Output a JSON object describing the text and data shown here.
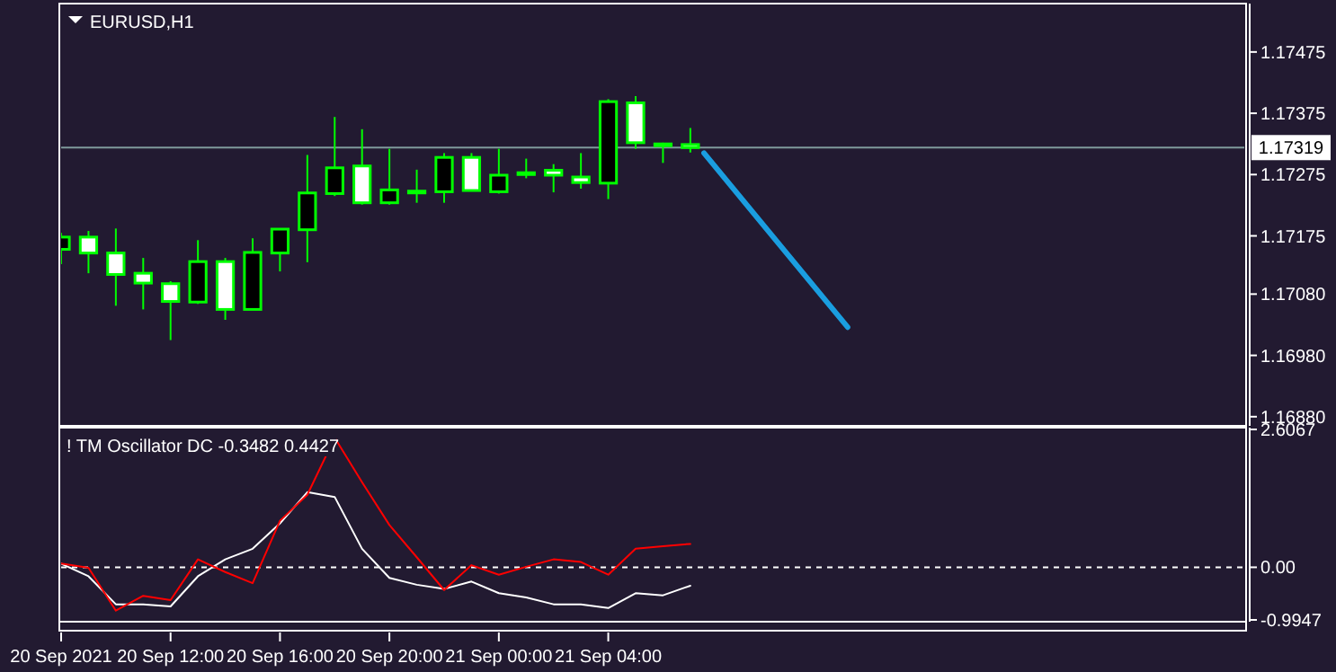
{
  "chart_data": [
    {
      "type": "candlestick",
      "title": "EURUSD,H1",
      "color": "#00ff00",
      "tick_labels": "y",
      "x": [
        "2021-09-20T08:00",
        "2021-09-20T09:00",
        "2021-09-20T10:00",
        "2021-09-20T11:00",
        "2021-09-20T12:00",
        "2021-09-20T13:00",
        "2021-09-20T14:00",
        "2021-09-20T15:00",
        "2021-09-20T16:00",
        "2021-09-20T17:00",
        "2021-09-20T18:00",
        "2021-09-20T19:00",
        "2021-09-20T20:00",
        "2021-09-20T21:00",
        "2021-09-20T22:00",
        "2021-09-20T23:00",
        "2021-09-21T00:00",
        "2021-09-21T01:00",
        "2021-09-21T02:00",
        "2021-09-21T03:00",
        "2021-09-21T04:00",
        "2021-09-21T05:00",
        "2021-09-21T06:00",
        "2021-09-21T07:00"
      ],
      "ohlc": [
        [
          1.17153,
          1.1718,
          1.17129,
          1.17173
        ],
        [
          1.17173,
          1.17183,
          1.17114,
          1.17147
        ],
        [
          1.17147,
          1.17187,
          1.17061,
          1.17112
        ],
        [
          1.17114,
          1.17139,
          1.17055,
          1.17098
        ],
        [
          1.17097,
          1.17101,
          1.17005,
          1.17068
        ],
        [
          1.17067,
          1.17168,
          1.17064,
          1.17133
        ],
        [
          1.17133,
          1.17139,
          1.17038,
          1.17055
        ],
        [
          1.17055,
          1.17171,
          1.17055,
          1.17148
        ],
        [
          1.17147,
          1.17186,
          1.17117,
          1.17186
        ],
        [
          1.17185,
          1.17307,
          1.17132,
          1.17245
        ],
        [
          1.17244,
          1.17369,
          1.1724,
          1.17286
        ],
        [
          1.17289,
          1.17349,
          1.17226,
          1.17229
        ],
        [
          1.17229,
          1.17317,
          1.17226,
          1.1725
        ],
        [
          1.17248,
          1.17283,
          1.17229,
          1.17248
        ],
        [
          1.17247,
          1.1731,
          1.17229,
          1.17303
        ],
        [
          1.17303,
          1.1731,
          1.17249,
          1.17249
        ],
        [
          1.17247,
          1.17317,
          1.17244,
          1.17274
        ],
        [
          1.17278,
          1.17301,
          1.17269,
          1.17278
        ],
        [
          1.17282,
          1.17292,
          1.17246,
          1.17274
        ],
        [
          1.17271,
          1.1731,
          1.17252,
          1.17262
        ],
        [
          1.17261,
          1.17398,
          1.17235,
          1.17394
        ],
        [
          1.17392,
          1.17403,
          1.17317,
          1.17327
        ],
        [
          1.17325,
          1.17327,
          1.17294,
          1.17325
        ],
        [
          1.17324,
          1.17351,
          1.17311,
          1.17319
        ]
      ],
      "series": [
        {
          "type": "line",
          "color": "#1a9ee0",
          "x": [
            "2021-09-21T07:30",
            "2021-09-21T12:45"
          ],
          "values": [
            1.1731,
            1.17026
          ]
        }
      ],
      "xlim": [
        "2021-09-20T08:00",
        "2021-09-22T03:15"
      ],
      "ylim": [
        1.16868,
        1.17551
      ],
      "yticks": [
        1.17475,
        1.17375,
        1.17275,
        1.17175,
        {
          "value": 1.1708,
          "label": "1.17080"
        },
        {
          "value": 1.1698,
          "label": "1.16980"
        },
        {
          "value": 1.1688,
          "label": "1.16880"
        }
      ],
      "ref_lines": [
        {
          "axis": "y",
          "value": 1.17319,
          "label": "1.17319",
          "color": "#7f9a9c"
        }
      ]
    },
    {
      "type": "line",
      "title": "! TM Oscillator DC -0.3482 0.4427",
      "x": [
        "2021-09-20T08:00",
        "2021-09-20T09:00",
        "2021-09-20T10:00",
        "2021-09-20T11:00",
        "2021-09-20T12:00",
        "2021-09-20T13:00",
        "2021-09-20T14:00",
        "2021-09-20T15:00",
        "2021-09-20T16:00",
        "2021-09-20T17:00",
        "2021-09-20T18:00",
        "2021-09-20T19:00",
        "2021-09-20T20:00",
        "2021-09-20T21:00",
        "2021-09-20T22:00",
        "2021-09-20T23:00",
        "2021-09-21T00:00",
        "2021-09-21T01:00",
        "2021-09-21T02:00",
        "2021-09-21T03:00",
        "2021-09-21T04:00",
        "2021-09-21T05:00",
        "2021-09-21T06:00",
        "2021-09-21T07:00"
      ],
      "series": [
        {
          "color": "#ffffff",
          "values": [
            0.07,
            -0.17,
            -0.7,
            -0.7,
            -0.74,
            -0.17,
            0.15,
            0.35,
            0.83,
            1.42,
            1.33,
            0.35,
            -0.2,
            -0.33,
            -0.41,
            -0.27,
            -0.49,
            -0.57,
            -0.7,
            -0.7,
            -0.77,
            -0.49,
            -0.53,
            -0.3482
          ]
        },
        {
          "color": "#ff0000",
          "values": [
            0.07,
            -0.01,
            -0.82,
            -0.54,
            -0.62,
            0.15,
            -0.09,
            -0.3,
            0.88,
            1.37,
            2.45,
            1.61,
            0.8,
            0.19,
            -0.43,
            0.04,
            -0.14,
            0.01,
            0.15,
            0.1,
            -0.14,
            0.35,
            0.4,
            0.4427
          ]
        }
      ],
      "xlim": [
        "2021-09-20T08:00",
        "2021-09-22T03:15"
      ],
      "xticks": [
        {
          "value": "2021-09-20T08:00",
          "label": "20 Sep 2021"
        },
        {
          "value": "2021-09-20T12:00",
          "label": "20 Sep 12:00"
        },
        {
          "value": "2021-09-20T16:00",
          "label": "20 Sep 16:00"
        },
        {
          "value": "2021-09-20T20:00",
          "label": "20 Sep 20:00"
        },
        {
          "value": "2021-09-21T00:00",
          "label": "21 Sep 00:00"
        },
        {
          "value": "2021-09-21T04:00",
          "label": "21 Sep 04:00"
        }
      ],
      "ylim": [
        -0.9947,
        2.6067
      ],
      "yticks": [
        2.6067,
        {
          "value": 0,
          "label": "0.00"
        },
        -0.9947
      ],
      "ref_lines": [
        {
          "axis": "y",
          "value": 0,
          "color": "#ffffff",
          "line_style": "dashed"
        }
      ]
    }
  ]
}
